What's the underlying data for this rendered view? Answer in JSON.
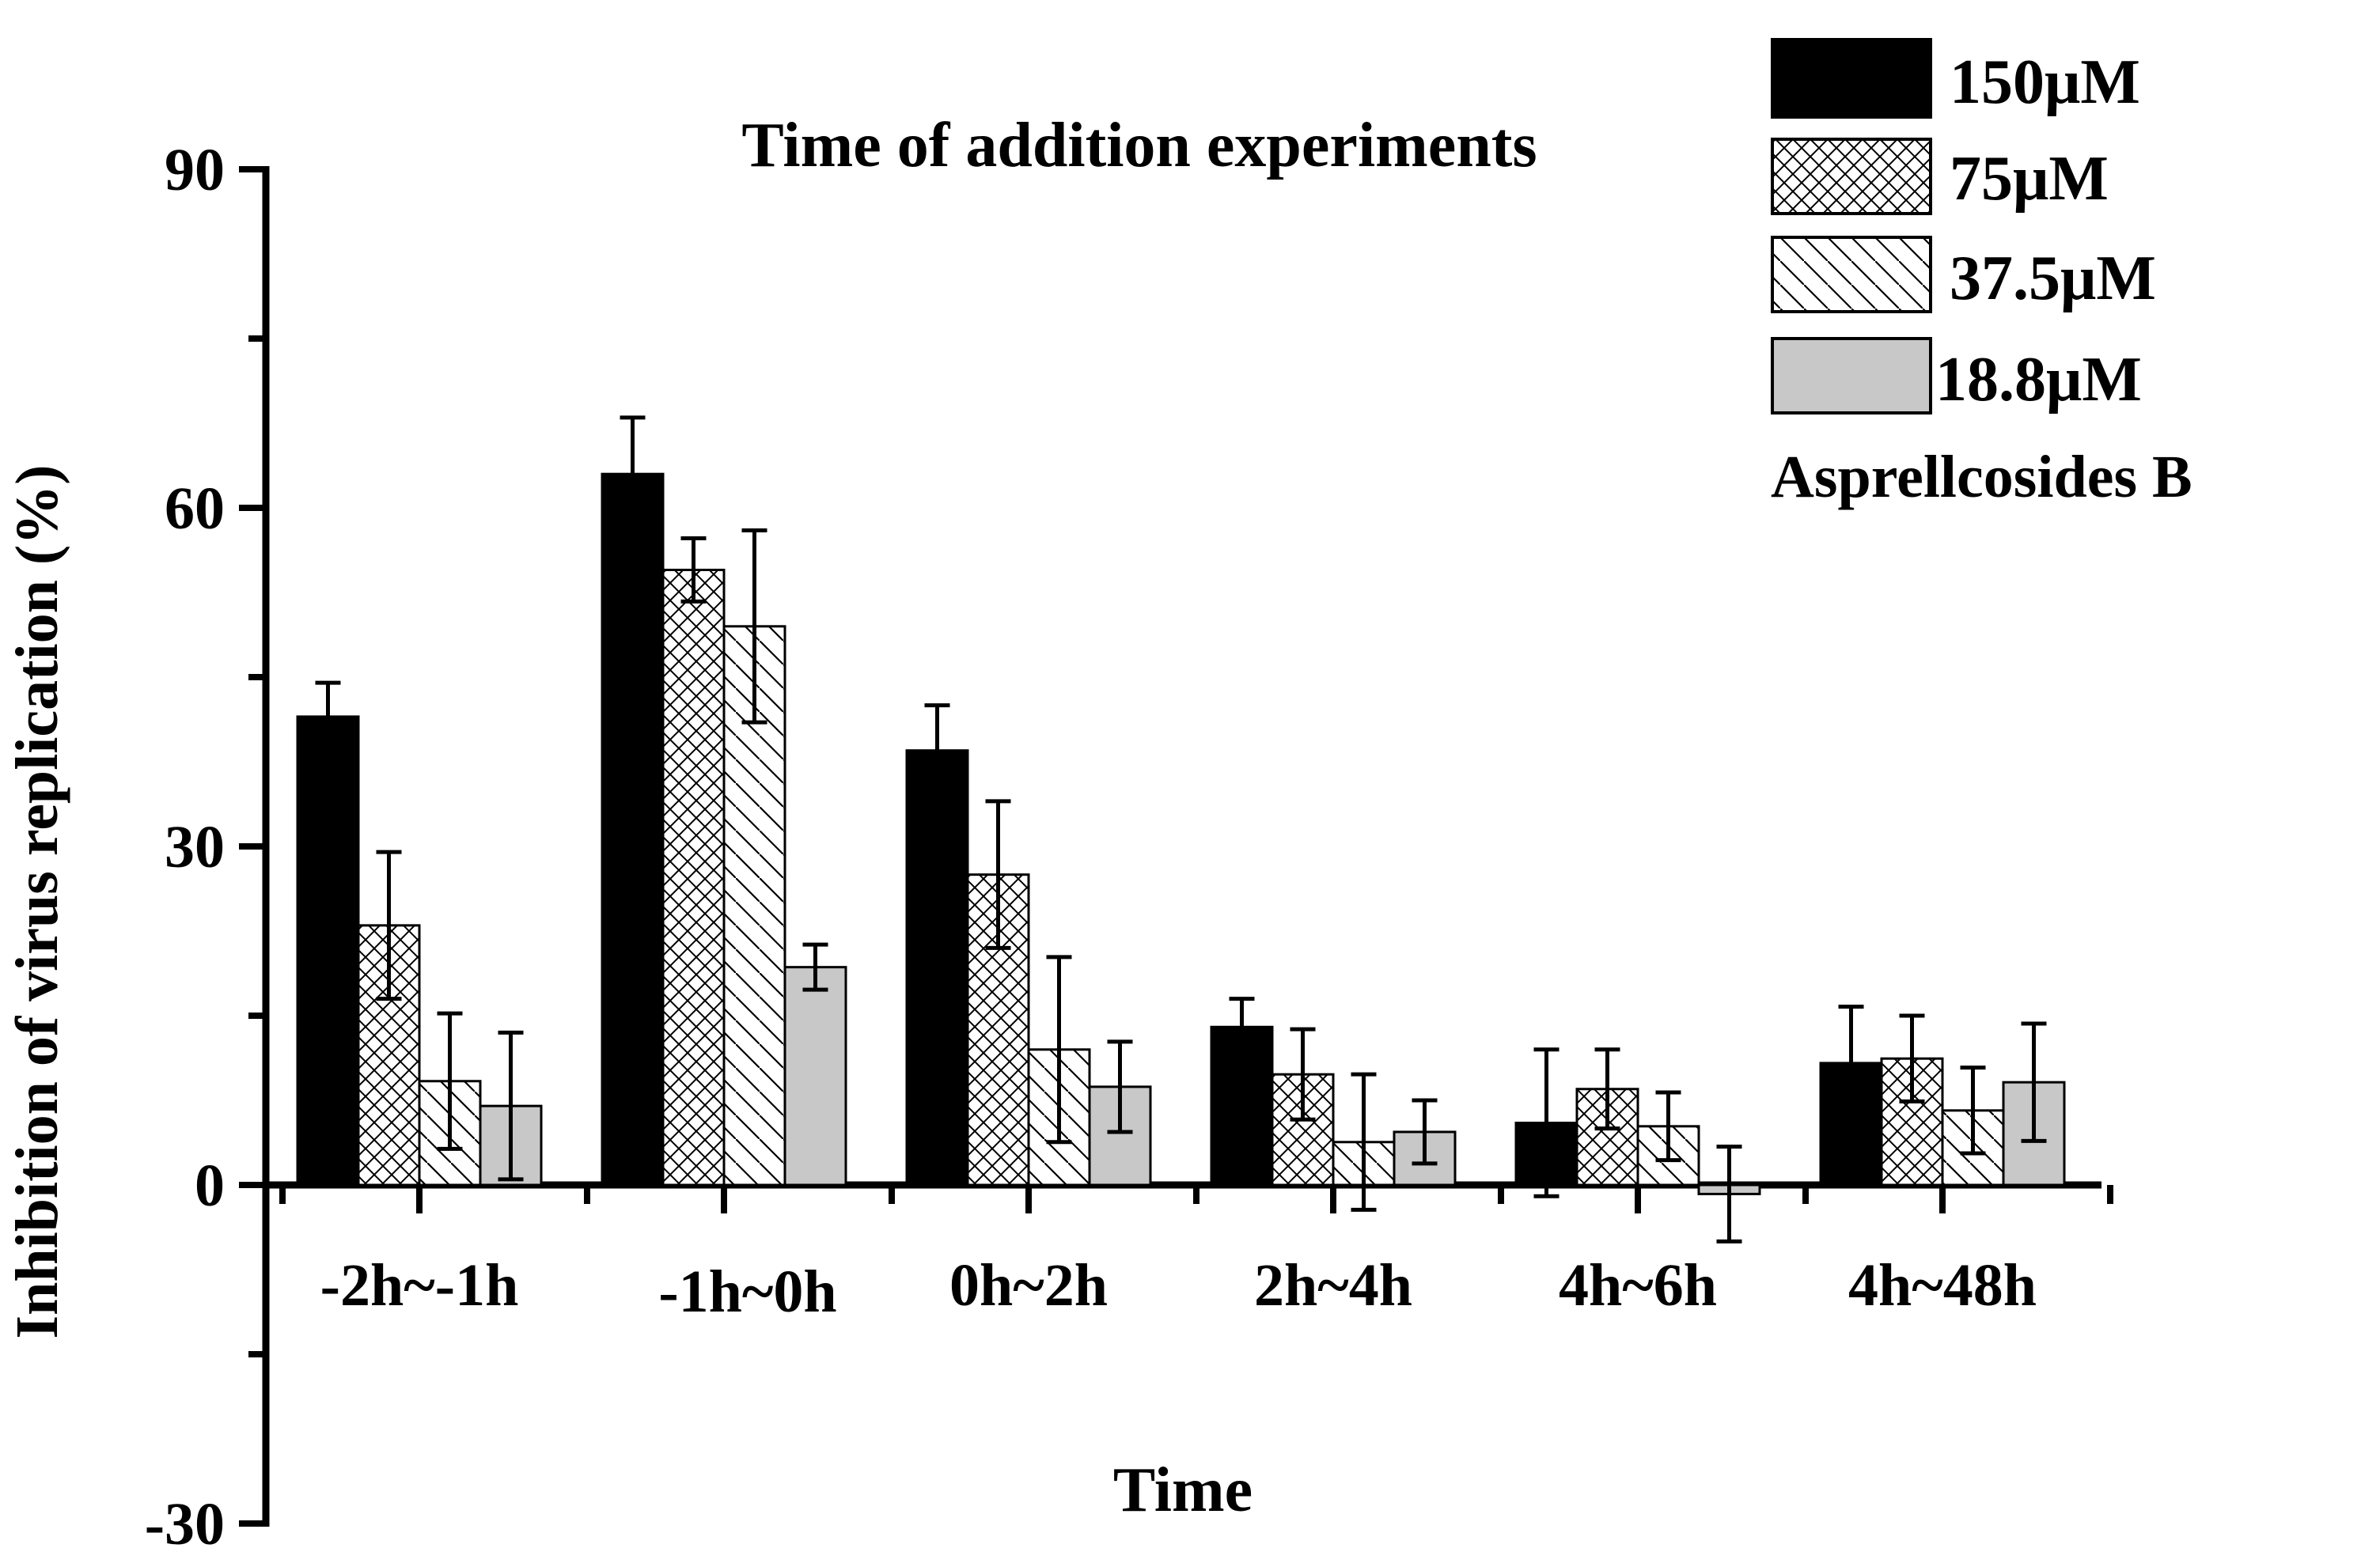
{
  "chart_data": {
    "type": "bar",
    "title": "Time of addition experiments",
    "xlabel": "Time",
    "ylabel": "Inhibition of virus replication (%)",
    "ylim": [
      -30,
      90
    ],
    "yticks": [
      -30,
      0,
      30,
      60,
      90
    ],
    "ytick_labels": [
      "-30",
      "0",
      "30",
      "60",
      "90"
    ],
    "categories": [
      "-2h~-1h",
      "-1h~0h",
      "0h~2h",
      "2h~4h",
      "4h~6h",
      "4h~48h"
    ],
    "legend_title": "Asprellcosides B",
    "legend_position": "top-right",
    "series": [
      {
        "name": "150μM",
        "pattern": "solid-black",
        "values": [
          41.5,
          63,
          38.5,
          14,
          5.5,
          10.8
        ],
        "errors": [
          3,
          5,
          4,
          2.5,
          6.5,
          5
        ]
      },
      {
        "name": "75μM",
        "pattern": "crosshatch",
        "values": [
          23,
          54.5,
          27.5,
          9.8,
          8.5,
          11.2
        ],
        "errors": [
          6.5,
          2.8,
          6.5,
          4,
          3.5,
          3.8
        ]
      },
      {
        "name": "37.5μM",
        "pattern": "diagonal",
        "values": [
          9.2,
          49.5,
          12,
          3.8,
          5.2,
          6.6
        ],
        "errors": [
          6,
          8.5,
          8.2,
          6,
          3,
          3.8
        ]
      },
      {
        "name": "18.8μM",
        "pattern": "gray",
        "values": [
          7,
          19.3,
          8.7,
          4.7,
          -0.8,
          9.1
        ],
        "errors": [
          6.5,
          2,
          4,
          2.8,
          4.2,
          5.2
        ]
      }
    ]
  }
}
